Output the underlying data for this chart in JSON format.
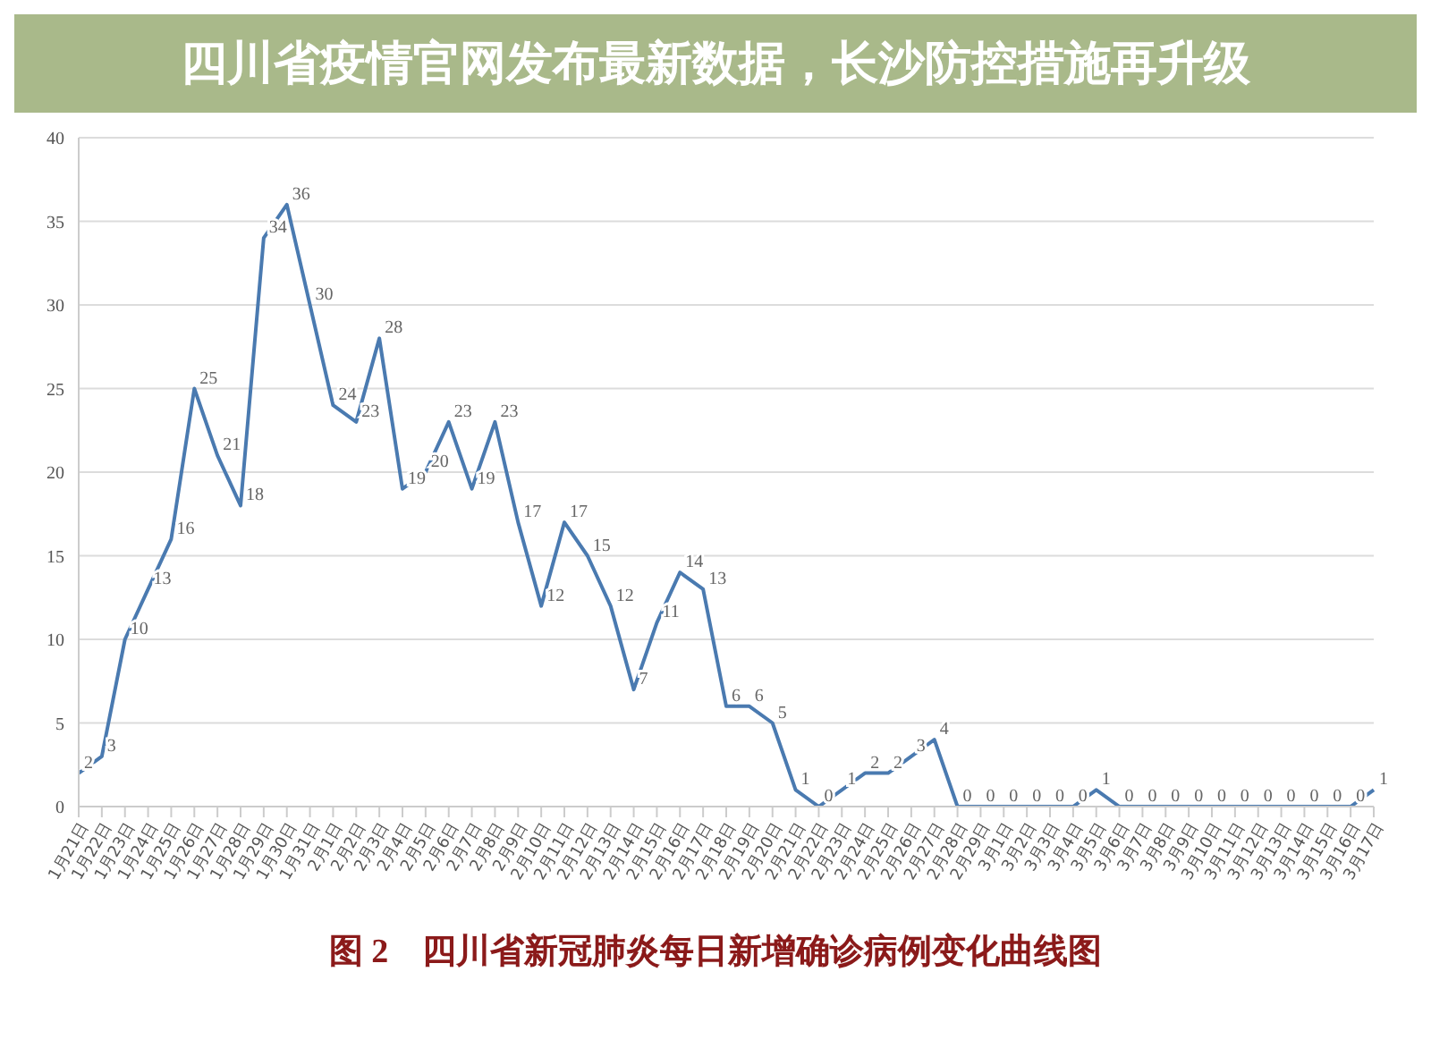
{
  "chart_data": {
    "type": "line",
    "title": "四川省疫情官网发布最新数据，长沙防控措施再升级",
    "categories": [
      "1月21日",
      "1月22日",
      "1月23日",
      "1月24日",
      "1月25日",
      "1月26日",
      "1月27日",
      "1月28日",
      "1月29日",
      "1月30日",
      "1月31日",
      "2月1日",
      "2月2日",
      "2月3日",
      "2月4日",
      "2月5日",
      "2月6日",
      "2月7日",
      "2月8日",
      "2月9日",
      "2月10日",
      "2月11日",
      "2月12日",
      "2月13日",
      "2月14日",
      "2月15日",
      "2月16日",
      "2月17日",
      "2月18日",
      "2月19日",
      "2月20日",
      "2月21日",
      "2月22日",
      "2月23日",
      "2月24日",
      "2月25日",
      "2月26日",
      "2月27日",
      "2月28日",
      "2月29日",
      "3月1日",
      "3月2日",
      "3月3日",
      "3月4日",
      "3月5日",
      "3月6日",
      "3月7日",
      "3月8日",
      "3月9日",
      "3月10日",
      "3月11日",
      "3月12日",
      "3月13日",
      "3月14日",
      "3月15日",
      "3月16日",
      "3月17日"
    ],
    "values": [
      2,
      3,
      10,
      13,
      16,
      25,
      21,
      18,
      34,
      36,
      30,
      24,
      23,
      28,
      19,
      20,
      23,
      19,
      23,
      17,
      12,
      17,
      15,
      12,
      7,
      11,
      14,
      13,
      6,
      6,
      5,
      1,
      0,
      1,
      2,
      2,
      3,
      4,
      0,
      0,
      0,
      0,
      0,
      0,
      1,
      0,
      0,
      0,
      0,
      0,
      0,
      0,
      0,
      0,
      0,
      0,
      1
    ],
    "color": "#4a7ab0",
    "ylim": [
      0,
      40
    ],
    "yticks": [
      0,
      5,
      10,
      15,
      20,
      25,
      30,
      35,
      40
    ],
    "grid": "y",
    "data_labels": true,
    "annotations": [
      "图 2　四川省新冠肺炎每日新增确诊病例变化曲线图"
    ]
  }
}
